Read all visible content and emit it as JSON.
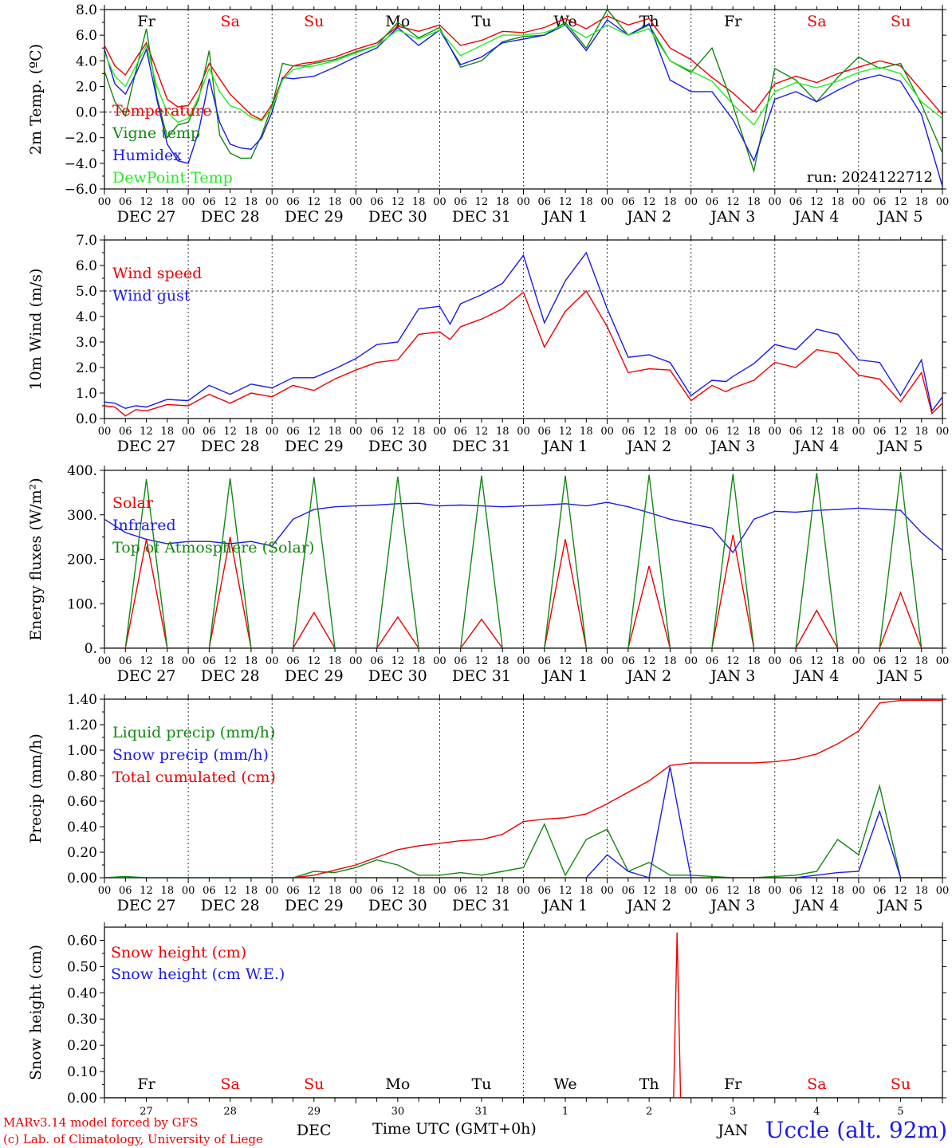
{
  "colors": {
    "red": "#ee0000",
    "green": "#118811",
    "blue": "#1a1aee",
    "lightgreen": "#22ee22",
    "axis": "#000000"
  },
  "time_axis": {
    "days": [
      "DEC 27",
      "DEC 28",
      "DEC 29",
      "DEC 30",
      "DEC 31",
      "JAN 1",
      "JAN 2",
      "JAN 3",
      "JAN 4",
      "JAN 5"
    ],
    "hour_ticks": [
      "00",
      "06",
      "12",
      "18"
    ],
    "last_tick": "00",
    "weekdays": [
      "Fr",
      "Sa",
      "Su",
      "Mo",
      "Tu",
      "We",
      "Th",
      "Fr",
      "Sa",
      "Su"
    ],
    "weekday_colors": [
      "#000000",
      "#ee0000",
      "#ee0000",
      "#000000",
      "#000000",
      "#000000",
      "#000000",
      "#000000",
      "#ee0000",
      "#ee0000"
    ],
    "day_numbers": [
      "27",
      "28",
      "29",
      "30",
      "31",
      "1",
      "2",
      "3",
      "4",
      "5"
    ],
    "month_labels": [
      "DEC",
      "JAN"
    ],
    "xlabel": "Time UTC (GMT+0h)"
  },
  "footer": {
    "model_line": "MARv3.14 model forced by GFS",
    "credit_line": "(c) Lab. of Climatology, University of Liege",
    "station": "Uccle (alt. 92m)"
  },
  "chart_data": [
    {
      "type": "line",
      "id": "temperature",
      "ylabel": "2m Temp. (ºC)",
      "ylim": [
        -6,
        8
      ],
      "yticks": [
        "−6.0",
        "−4.0",
        "−2.0",
        "0.0",
        "2.0",
        "4.0",
        "6.0",
        "8.0"
      ],
      "dashed_hline": 0,
      "annotation": "run: 2024122712",
      "x_hours": [
        0,
        3,
        6,
        9,
        12,
        15,
        18,
        21,
        24,
        27,
        30,
        33,
        36,
        39,
        42,
        45,
        48,
        51,
        54,
        57,
        60,
        66,
        72,
        78,
        84,
        90,
        96,
        102,
        108,
        114,
        120,
        126,
        132,
        138,
        144,
        150,
        156,
        162,
        168,
        174,
        180,
        186,
        192,
        198,
        204,
        210,
        216,
        222,
        228,
        234,
        240
      ],
      "series": [
        {
          "name": "Temperature",
          "color": "#ee0000",
          "values": [
            5.2,
            3.6,
            2.9,
            4.2,
            5.4,
            3.2,
            1.0,
            0.4,
            0.5,
            1.8,
            3.8,
            2.6,
            1.4,
            0.6,
            -0.2,
            -0.6,
            0.6,
            2.6,
            3.6,
            3.8,
            3.9,
            4.3,
            4.9,
            5.4,
            6.7,
            6.3,
            6.8,
            5.2,
            5.6,
            6.3,
            6.2,
            6.6,
            7.3,
            6.5,
            7.5,
            6.8,
            7.3,
            5.0,
            4.1,
            2.7,
            1.5,
            0.0,
            2.2,
            2.8,
            2.3,
            3.0,
            3.5,
            4.0,
            3.6,
            1.7,
            -0.2
          ]
        },
        {
          "name": "Vigne temp",
          "color": "#118811",
          "values": [
            3.2,
            0.8,
            -0.3,
            3.2,
            6.5,
            1.2,
            -2.0,
            -1.0,
            -0.8,
            1.0,
            4.8,
            -1.8,
            -3.2,
            -3.6,
            -3.6,
            -1.8,
            0.5,
            3.8,
            3.6,
            3.6,
            3.8,
            4.1,
            4.7,
            5.2,
            7.0,
            5.8,
            6.6,
            3.5,
            4.0,
            5.5,
            5.9,
            6.0,
            7.0,
            5.0,
            8.0,
            6.0,
            6.8,
            4.0,
            3.1,
            5.0,
            0.5,
            -4.6,
            3.4,
            2.5,
            0.8,
            2.7,
            4.3,
            3.4,
            3.8,
            0.6,
            -3.2
          ]
        },
        {
          "name": "Humidex",
          "color": "#1a1aee",
          "values": [
            4.9,
            2.2,
            1.4,
            3.0,
            4.9,
            1.0,
            -2.5,
            -3.8,
            -4.0,
            -1.5,
            2.6,
            -0.8,
            -2.5,
            -2.8,
            -2.9,
            -2.0,
            0.0,
            2.7,
            2.6,
            2.7,
            2.8,
            3.5,
            4.3,
            5.0,
            6.6,
            5.2,
            6.4,
            3.7,
            4.3,
            5.4,
            5.7,
            6.0,
            6.8,
            4.8,
            7.2,
            6.0,
            6.9,
            2.5,
            1.6,
            1.6,
            -0.6,
            -3.8,
            1.0,
            1.6,
            0.8,
            1.7,
            2.5,
            2.9,
            2.4,
            -0.2,
            -5.8
          ]
        },
        {
          "name": "DewPoint Temp",
          "color": "#22ee22",
          "values": [
            4.6,
            2.8,
            2.0,
            3.6,
            5.2,
            2.0,
            0.0,
            -0.8,
            -0.5,
            1.2,
            3.4,
            1.6,
            0.5,
            0.2,
            -0.4,
            -0.7,
            0.3,
            2.5,
            3.3,
            3.5,
            3.6,
            4.0,
            4.6,
            5.2,
            6.4,
            5.7,
            6.4,
            4.4,
            5.2,
            6.0,
            6.0,
            6.2,
            6.8,
            5.8,
            6.8,
            6.0,
            6.5,
            4.0,
            3.2,
            2.4,
            0.6,
            -1.0,
            1.6,
            2.3,
            1.9,
            2.4,
            3.1,
            3.5,
            3.0,
            0.8,
            -0.5
          ]
        }
      ]
    },
    {
      "type": "line",
      "id": "wind",
      "ylabel": "10m Wind (m/s)",
      "ylim": [
        0,
        7
      ],
      "yticks": [
        "0.0",
        "1.0",
        "2.0",
        "3.0",
        "4.0",
        "5.0",
        "6.0",
        "7.0"
      ],
      "dashed_hline": 5,
      "x_hours": [
        0,
        3,
        6,
        9,
        12,
        18,
        24,
        30,
        36,
        42,
        48,
        54,
        60,
        66,
        72,
        78,
        84,
        90,
        96,
        99,
        102,
        108,
        114,
        120,
        126,
        132,
        138,
        144,
        150,
        156,
        162,
        168,
        174,
        178,
        180,
        186,
        192,
        198,
        204,
        210,
        216,
        222,
        228,
        234,
        237,
        240
      ],
      "series": [
        {
          "name": "Wind speed",
          "color": "#ee0000",
          "values": [
            0.5,
            0.45,
            0.1,
            0.35,
            0.3,
            0.55,
            0.5,
            0.95,
            0.6,
            1.0,
            0.85,
            1.3,
            1.1,
            1.55,
            1.9,
            2.2,
            2.3,
            3.3,
            3.4,
            3.1,
            3.6,
            3.9,
            4.3,
            4.95,
            2.8,
            4.2,
            5.0,
            3.6,
            1.8,
            1.95,
            1.9,
            0.7,
            1.3,
            1.05,
            1.2,
            1.5,
            2.2,
            2.0,
            2.7,
            2.55,
            1.7,
            1.55,
            0.65,
            1.8,
            0.2,
            0.6
          ]
        },
        {
          "name": "Wind gust",
          "color": "#1a1aee",
          "values": [
            0.65,
            0.6,
            0.4,
            0.5,
            0.45,
            0.75,
            0.7,
            1.3,
            0.95,
            1.35,
            1.2,
            1.6,
            1.6,
            1.95,
            2.35,
            2.9,
            3.0,
            4.3,
            4.4,
            3.7,
            4.5,
            4.85,
            5.3,
            6.4,
            3.75,
            5.4,
            6.5,
            4.3,
            2.4,
            2.5,
            2.2,
            0.9,
            1.5,
            1.45,
            1.65,
            2.15,
            2.9,
            2.7,
            3.5,
            3.3,
            2.3,
            2.2,
            0.9,
            2.3,
            0.3,
            0.85
          ]
        }
      ]
    },
    {
      "type": "line",
      "id": "energy",
      "ylabel": "Energy fluxes (W/m²)",
      "ylim": [
        0,
        400
      ],
      "yticks": [
        "0.",
        "100.",
        "200.",
        "300.",
        "400."
      ],
      "x_hours": [
        0,
        6,
        12,
        18,
        24,
        30,
        36,
        42,
        48,
        54,
        60,
        66,
        72,
        78,
        84,
        90,
        96,
        102,
        108,
        114,
        120,
        126,
        132,
        138,
        144,
        150,
        156,
        162,
        168,
        174,
        180,
        186,
        192,
        198,
        204,
        210,
        216,
        222,
        228,
        234,
        240
      ],
      "series": [
        {
          "name": "Solar",
          "color": "#ee0000",
          "values": [
            0,
            0,
            245,
            0,
            0,
            0,
            250,
            0,
            0,
            0,
            80,
            0,
            0,
            0,
            70,
            0,
            0,
            0,
            65,
            0,
            0,
            0,
            245,
            0,
            0,
            0,
            185,
            0,
            0,
            0,
            255,
            0,
            0,
            0,
            85,
            0,
            0,
            0,
            125,
            0,
            0
          ]
        },
        {
          "name": "Infrared",
          "color": "#1a1aee",
          "values": [
            290,
            260,
            245,
            235,
            240,
            240,
            235,
            240,
            230,
            290,
            312,
            318,
            320,
            322,
            325,
            326,
            320,
            322,
            320,
            318,
            320,
            322,
            325,
            320,
            328,
            318,
            305,
            290,
            280,
            270,
            215,
            290,
            308,
            306,
            310,
            312,
            315,
            312,
            310,
            260,
            220
          ]
        },
        {
          "name": "Top of Atmosphere (Solar)",
          "color": "#118811",
          "values": [
            0,
            0,
            380,
            0,
            0,
            0,
            382,
            0,
            0,
            0,
            385,
            0,
            0,
            0,
            386,
            0,
            0,
            0,
            388,
            0,
            0,
            0,
            388,
            0,
            0,
            0,
            390,
            0,
            0,
            0,
            392,
            0,
            0,
            0,
            394,
            0,
            0,
            0,
            396,
            0,
            0
          ]
        }
      ]
    },
    {
      "type": "line",
      "id": "precip",
      "ylabel": "Precip (mm/h)",
      "ylim": [
        0,
        1.4
      ],
      "yticks": [
        "0.00",
        "0.20",
        "0.40",
        "0.60",
        "0.80",
        "1.00",
        "1.20",
        "1.40"
      ],
      "x_hours": [
        0,
        6,
        12,
        18,
        24,
        30,
        36,
        42,
        48,
        54,
        60,
        66,
        72,
        78,
        84,
        90,
        96,
        102,
        108,
        114,
        120,
        126,
        132,
        138,
        144,
        150,
        156,
        162,
        168,
        174,
        180,
        186,
        192,
        198,
        204,
        210,
        216,
        222,
        228,
        234,
        240
      ],
      "series": [
        {
          "name": "Liquid precip (mm/h)",
          "color": "#118811",
          "values": [
            0,
            0.01,
            0,
            0,
            0,
            0,
            0,
            0,
            0,
            0,
            0.05,
            0.04,
            0.08,
            0.14,
            0.1,
            0.02,
            0.02,
            0.04,
            0.02,
            0.05,
            0.08,
            0.42,
            0.02,
            0.3,
            0.38,
            0.05,
            0.12,
            0.02,
            0.02,
            0.01,
            0,
            0,
            0.01,
            0.02,
            0.05,
            0.3,
            0.18,
            0.72,
            0,
            0,
            0
          ]
        },
        {
          "name": "Snow precip (mm/h)",
          "color": "#1a1aee",
          "values": [
            0,
            0,
            0,
            0,
            0,
            0,
            0,
            0,
            0,
            0,
            0,
            0,
            0,
            0,
            0,
            0,
            0,
            0,
            0,
            0,
            0,
            0,
            0,
            0,
            0.18,
            0.05,
            0,
            0.87,
            0,
            0,
            0,
            0,
            0,
            0,
            0.02,
            0.04,
            0.05,
            0.52,
            0,
            0,
            0
          ]
        },
        {
          "name": "Total cumulated (cm)",
          "color": "#ee0000",
          "values": [
            0,
            0,
            0,
            0,
            0,
            0,
            0,
            0,
            0,
            0,
            0.02,
            0.06,
            0.1,
            0.16,
            0.22,
            0.25,
            0.27,
            0.29,
            0.3,
            0.34,
            0.44,
            0.46,
            0.47,
            0.5,
            0.58,
            0.67,
            0.76,
            0.88,
            0.9,
            0.9,
            0.9,
            0.9,
            0.91,
            0.93,
            0.97,
            1.05,
            1.15,
            1.37,
            1.39,
            1.39,
            1.39
          ]
        }
      ]
    },
    {
      "type": "line",
      "id": "snow",
      "ylabel": "Snow height (cm)",
      "ylim": [
        0,
        0.65
      ],
      "yticks": [
        "0.00",
        "0.10",
        "0.20",
        "0.30",
        "0.40",
        "0.50",
        "0.60"
      ],
      "x_hours": [
        0,
        163,
        164,
        165,
        240
      ],
      "series": [
        {
          "name": "Snow height (cm)",
          "color": "#ee0000",
          "values": [
            0,
            0,
            0.63,
            0,
            0
          ]
        },
        {
          "name": "Snow height (cm W.E.)",
          "color": "#1a1aee",
          "values": [
            0,
            0,
            0,
            0,
            0
          ]
        }
      ]
    }
  ]
}
